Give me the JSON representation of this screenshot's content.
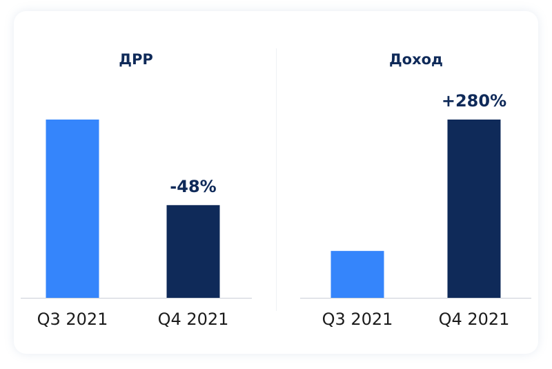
{
  "chart_data": [
    {
      "type": "bar",
      "title": "ДРР",
      "categories": [
        "Q3 2021",
        "Q4 2021"
      ],
      "values": [
        100,
        52
      ],
      "ylim": [
        0,
        100
      ],
      "data_labels": [
        "",
        "-48%"
      ],
      "colors": [
        "#3585fb",
        "#0f2a59"
      ],
      "grid": false
    },
    {
      "type": "bar",
      "title": "Доход",
      "categories": [
        "Q3 2021",
        "Q4 2021"
      ],
      "values": [
        26.3,
        100
      ],
      "ylim": [
        0,
        100
      ],
      "data_labels": [
        "",
        "+280%"
      ],
      "colors": [
        "#3585fb",
        "#0f2a59"
      ],
      "grid": false
    }
  ]
}
